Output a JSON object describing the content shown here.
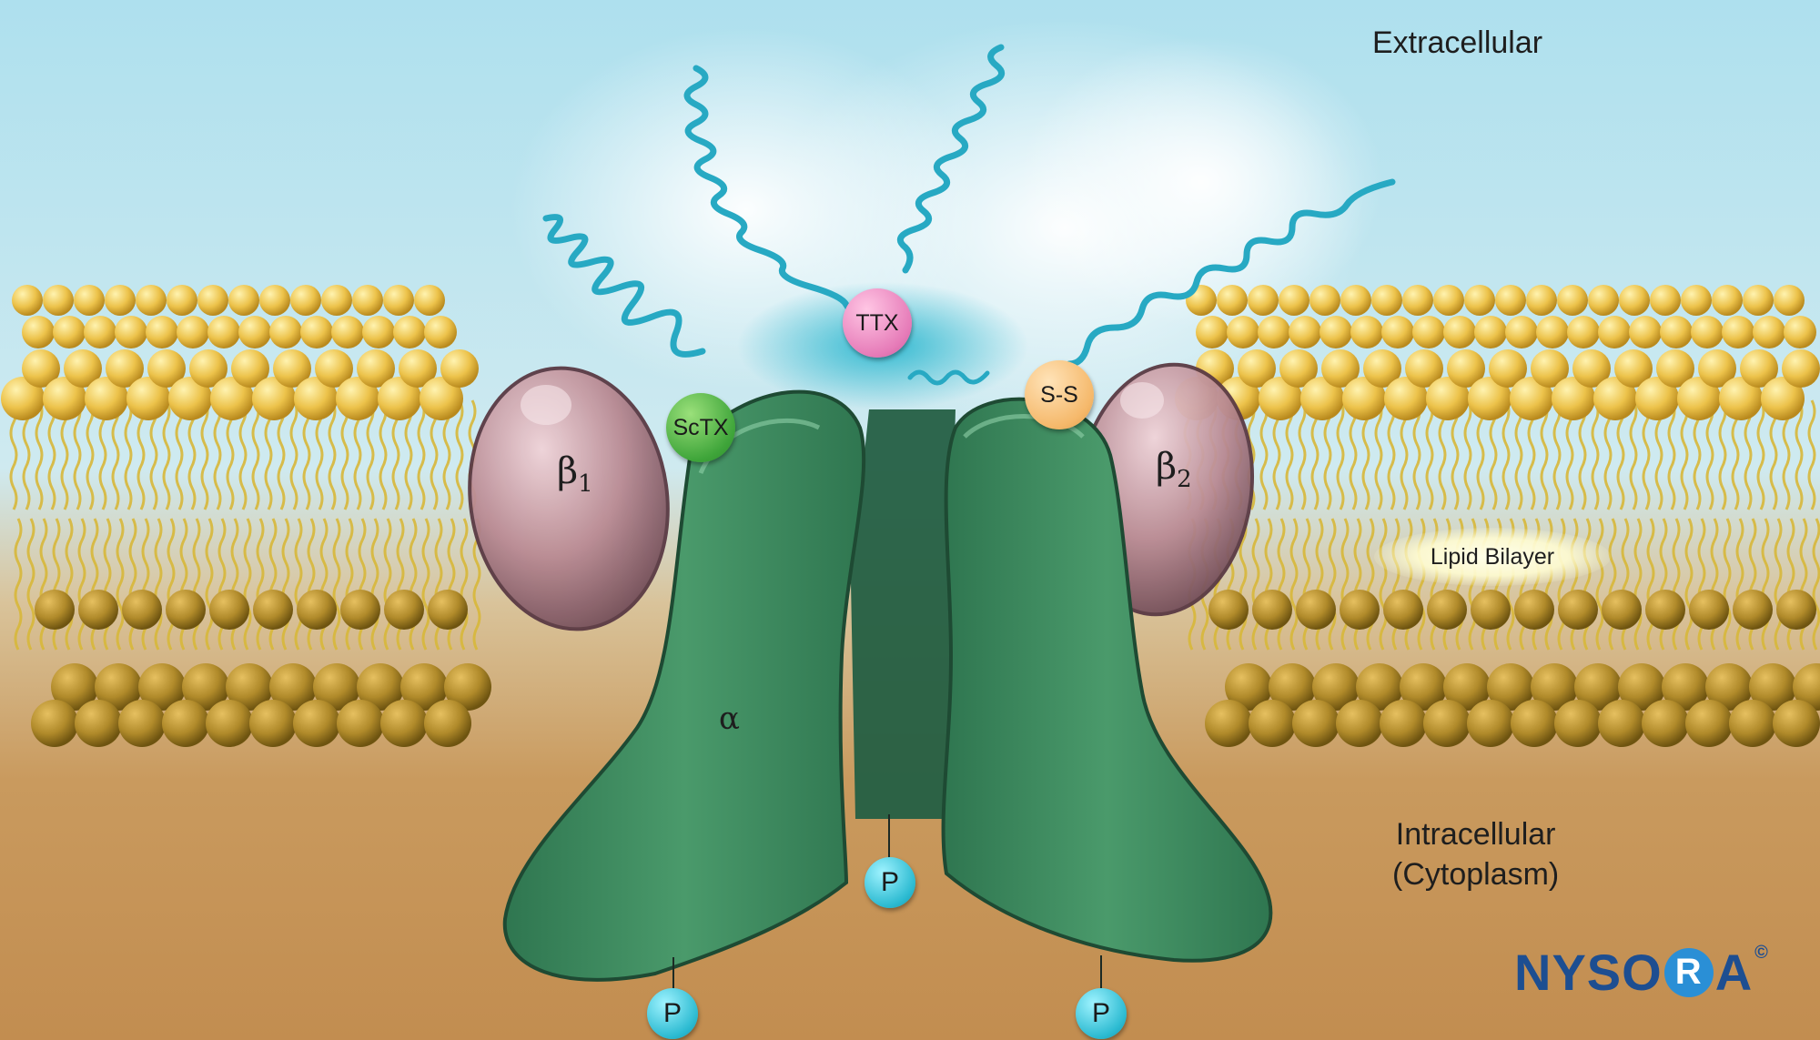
{
  "labels": {
    "extracellular": "Extracellular",
    "intracellular_line1": "Intracellular",
    "intracellular_line2": "(Cytoplasm)",
    "lipid_bilayer": "Lipid Bilayer",
    "beta1": "β",
    "beta1_sub": "1",
    "beta2": "β",
    "beta2_sub": "2",
    "alpha": "α"
  },
  "badges": {
    "ttx": "TTX",
    "sctx": "ScTX",
    "ss": "S-S",
    "phosphate": "P"
  },
  "logo": {
    "text_main": "NYSO",
    "text_r": "R",
    "text_a": "A",
    "copyright": "©"
  },
  "colors": {
    "extracellular_bg": "#b9e3ef",
    "intracellular_bg": "#c9955a",
    "alpha_subunit": "#3f8a5e",
    "beta_subunit": "#b98a93",
    "lipid_head": "#e6b83a",
    "ttx": "#e67bb8",
    "sctx": "#3fa53a",
    "ss": "#f5b86a",
    "phosphate": "#2bbad1",
    "logo": "#1d4e91"
  }
}
